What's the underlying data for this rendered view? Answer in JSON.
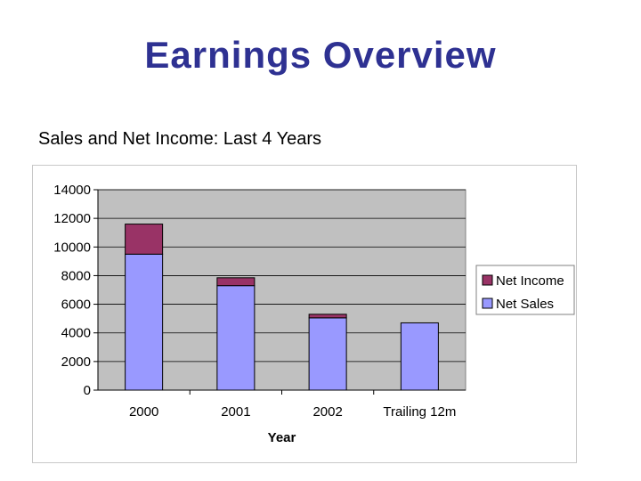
{
  "slide": {
    "title": "Earnings Overview",
    "subtitle": "Sales and Net Income: Last 4 Years"
  },
  "chart_data": {
    "type": "bar",
    "stacked": true,
    "categories": [
      "2000",
      "2001",
      "2002",
      "Trailing 12m"
    ],
    "series": [
      {
        "name": "Net Sales",
        "values": [
          9500,
          7300,
          5050,
          4700
        ],
        "color": "#9999ff"
      },
      {
        "name": "Net Income",
        "values": [
          2100,
          550,
          250,
          0
        ],
        "color": "#993366"
      }
    ],
    "xlabel": "Year",
    "ylabel": "",
    "ylim": [
      0,
      14000
    ],
    "yticks": [
      0,
      2000,
      4000,
      6000,
      8000,
      10000,
      12000,
      14000
    ],
    "grid": true,
    "plot_background": "#c0c0c0",
    "legend_position": "right"
  }
}
